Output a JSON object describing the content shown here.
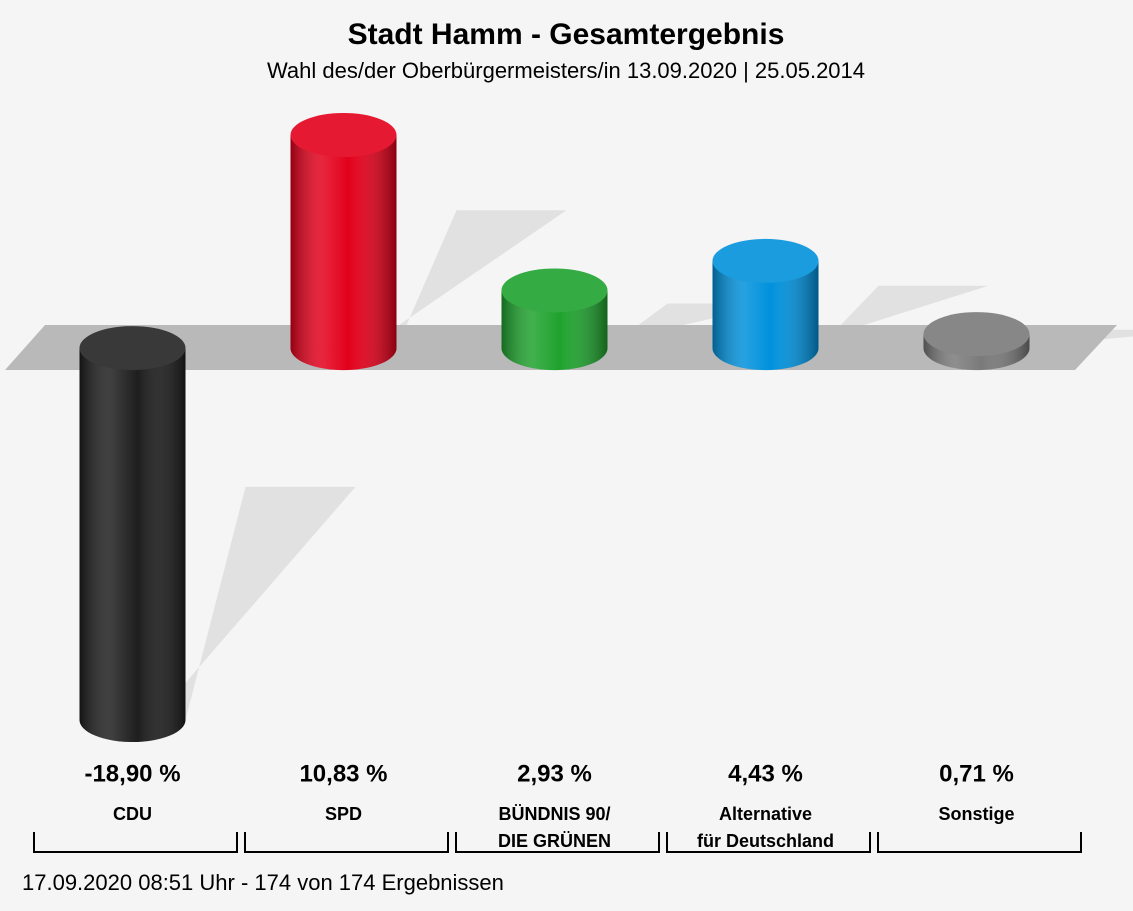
{
  "chart_data": {
    "type": "bar",
    "title": "Stadt Hamm - Gesamtergebnis",
    "subtitle": "Wahl des/der Oberbürgermeisters/in 13.09.2020  | 25.05.2014",
    "categories": [
      "CDU",
      "SPD",
      "BÜNDNIS 90/\nDIE GRÜNEN",
      "Alternative\nfür Deutschland",
      "Sonstige"
    ],
    "values": [
      -18.9,
      10.83,
      2.93,
      4.43,
      0.71
    ],
    "value_labels": [
      "-18,90 %",
      "10,83 %",
      "2,93 %",
      "4,43 %",
      "0,71 %"
    ],
    "colors": [
      "#1e1e1e",
      "#e3001b",
      "#1fa22e",
      "#0091dc",
      "#7a7a7a"
    ],
    "footer": "17.09.2020 08:51 Uhr - 174 von 174 Ergebnissen"
  }
}
